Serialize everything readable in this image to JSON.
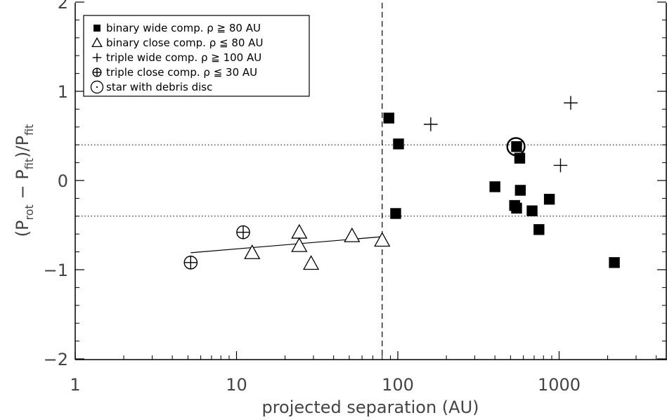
{
  "chart_data": {
    "type": "scatter",
    "xscale": "log",
    "xlim": [
      1,
      5000
    ],
    "ylim": [
      -2,
      2
    ],
    "xlabel": "projected separation (AU)",
    "ylabel": "(P_rot − P_fit)/P_fit",
    "ylabel_parts": {
      "open": "(P",
      "rot": "rot",
      "minus": " − P",
      "fit1": "fit",
      "close": ")/P",
      "fit2": "fit"
    },
    "x_ticks": [
      {
        "value": 1,
        "label": "1"
      },
      {
        "value": 10,
        "label": "10"
      },
      {
        "value": 100,
        "label": "100"
      },
      {
        "value": 1000,
        "label": "1000"
      }
    ],
    "y_ticks": [
      {
        "value": -2,
        "label": "−2"
      },
      {
        "value": -1,
        "label": "−1"
      },
      {
        "value": 0,
        "label": "0"
      },
      {
        "value": 1,
        "label": "1"
      },
      {
        "value": 2,
        "label": "2"
      }
    ],
    "vline_x": 80,
    "hlines_y": [
      0.4,
      -0.4
    ],
    "fit_line": {
      "x": [
        5.2,
        80
      ],
      "y": [
        -0.81,
        -0.63
      ]
    },
    "legend": {
      "position": "top-left",
      "entries": [
        {
          "marker": "square",
          "label": "binary wide comp. ρ ≧ 80 AU"
        },
        {
          "marker": "triangle",
          "label": "binary close comp. ρ ≦ 80 AU"
        },
        {
          "marker": "plus",
          "label": "triple wide comp. ρ ≧ 100 AU"
        },
        {
          "marker": "circle-plus",
          "label": "triple close comp. ρ ≦ 30 AU"
        },
        {
          "marker": "circle-dot",
          "label": "star with debris disc"
        }
      ]
    },
    "series": [
      {
        "marker": "square",
        "points": [
          {
            "x": 88,
            "y": 0.7
          },
          {
            "x": 101,
            "y": 0.41
          },
          {
            "x": 97,
            "y": -0.37
          },
          {
            "x": 400,
            "y": -0.07
          },
          {
            "x": 530,
            "y": -0.28
          },
          {
            "x": 545,
            "y": -0.31
          },
          {
            "x": 545,
            "y": 0.38
          },
          {
            "x": 570,
            "y": 0.25
          },
          {
            "x": 575,
            "y": -0.11
          },
          {
            "x": 680,
            "y": -0.34
          },
          {
            "x": 750,
            "y": -0.55
          },
          {
            "x": 870,
            "y": -0.21
          },
          {
            "x": 2200,
            "y": -0.92
          }
        ]
      },
      {
        "marker": "triangle",
        "points": [
          {
            "x": 12.5,
            "y": -0.81
          },
          {
            "x": 24.5,
            "y": -0.58
          },
          {
            "x": 24.5,
            "y": -0.73
          },
          {
            "x": 29,
            "y": -0.93
          },
          {
            "x": 52,
            "y": -0.62
          },
          {
            "x": 80,
            "y": -0.67
          }
        ]
      },
      {
        "marker": "plus",
        "points": [
          {
            "x": 160,
            "y": 0.63
          },
          {
            "x": 1020,
            "y": 0.17
          },
          {
            "x": 1180,
            "y": 0.87
          }
        ]
      },
      {
        "marker": "circle-plus",
        "points": [
          {
            "x": 5.2,
            "y": -0.92
          },
          {
            "x": 11,
            "y": -0.58
          }
        ]
      },
      {
        "marker": "circle-dot",
        "points": [
          {
            "x": 540,
            "y": 0.38
          }
        ]
      }
    ]
  }
}
